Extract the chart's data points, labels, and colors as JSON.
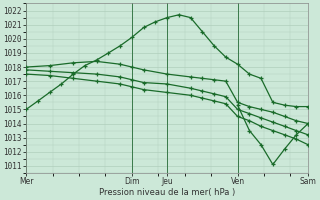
{
  "background_color": "#cce8d8",
  "grid_color": "#b0cfbc",
  "line_color": "#1a6b2a",
  "title": "Pression niveau de la mer( hPa )",
  "ylim": [
    1010.5,
    1022.5
  ],
  "yticks": [
    1011,
    1012,
    1013,
    1014,
    1015,
    1016,
    1017,
    1018,
    1019,
    1020,
    1021,
    1022
  ],
  "day_positions": [
    0.0,
    0.375,
    0.5,
    0.75,
    1.0
  ],
  "day_labels": [
    "Mer",
    "Dim",
    "Jeu",
    "Ven",
    "Sam"
  ],
  "main_x": [
    0.0,
    0.042,
    0.083,
    0.125,
    0.167,
    0.208,
    0.25,
    0.292,
    0.333,
    0.375,
    0.417,
    0.458,
    0.5,
    0.542,
    0.583,
    0.625,
    0.667,
    0.708,
    0.75,
    0.792,
    0.833,
    0.875,
    0.917,
    0.958,
    1.0
  ],
  "main_y": [
    1015.0,
    1015.6,
    1016.2,
    1016.8,
    1017.5,
    1018.1,
    1018.5,
    1019.0,
    1019.5,
    1020.1,
    1020.8,
    1021.2,
    1021.5,
    1021.7,
    1021.5,
    1020.5,
    1019.5,
    1018.7,
    1018.2,
    1017.5,
    1017.2,
    1015.5,
    1015.3,
    1015.2,
    1015.2
  ],
  "main2_x": [
    0.75,
    0.792,
    0.833,
    0.875,
    0.917,
    0.958,
    1.0
  ],
  "main2_y": [
    1015.3,
    1013.5,
    1012.5,
    1011.1,
    1012.2,
    1013.2,
    1014.0
  ],
  "f1_x": [
    0.0,
    0.083,
    0.167,
    0.25,
    0.333,
    0.375,
    0.417,
    0.5,
    0.583,
    0.625,
    0.667,
    0.708,
    0.75,
    0.792,
    0.833,
    0.875,
    0.917,
    0.958,
    1.0
  ],
  "f1_y": [
    1018.0,
    1018.1,
    1018.3,
    1018.4,
    1018.2,
    1018.0,
    1017.8,
    1017.5,
    1017.3,
    1017.2,
    1017.1,
    1017.0,
    1015.5,
    1015.2,
    1015.0,
    1014.8,
    1014.5,
    1014.2,
    1014.0
  ],
  "f2_x": [
    0.0,
    0.083,
    0.167,
    0.25,
    0.333,
    0.375,
    0.417,
    0.5,
    0.583,
    0.625,
    0.667,
    0.708,
    0.75,
    0.792,
    0.833,
    0.875,
    0.917,
    0.958,
    1.0
  ],
  "f2_y": [
    1017.8,
    1017.7,
    1017.6,
    1017.5,
    1017.3,
    1017.1,
    1016.9,
    1016.8,
    1016.5,
    1016.3,
    1016.1,
    1015.9,
    1015.0,
    1014.7,
    1014.4,
    1014.1,
    1013.8,
    1013.5,
    1013.2
  ],
  "f3_x": [
    0.0,
    0.083,
    0.167,
    0.25,
    0.333,
    0.375,
    0.417,
    0.5,
    0.583,
    0.625,
    0.667,
    0.708,
    0.75,
    0.792,
    0.833,
    0.875,
    0.917,
    0.958,
    1.0
  ],
  "f3_y": [
    1017.5,
    1017.4,
    1017.2,
    1017.0,
    1016.8,
    1016.6,
    1016.4,
    1016.2,
    1016.0,
    1015.8,
    1015.6,
    1015.4,
    1014.5,
    1014.2,
    1013.8,
    1013.5,
    1013.2,
    1012.9,
    1012.5
  ],
  "vline_positions": [
    0.0,
    0.375,
    0.5,
    0.75,
    1.0
  ]
}
